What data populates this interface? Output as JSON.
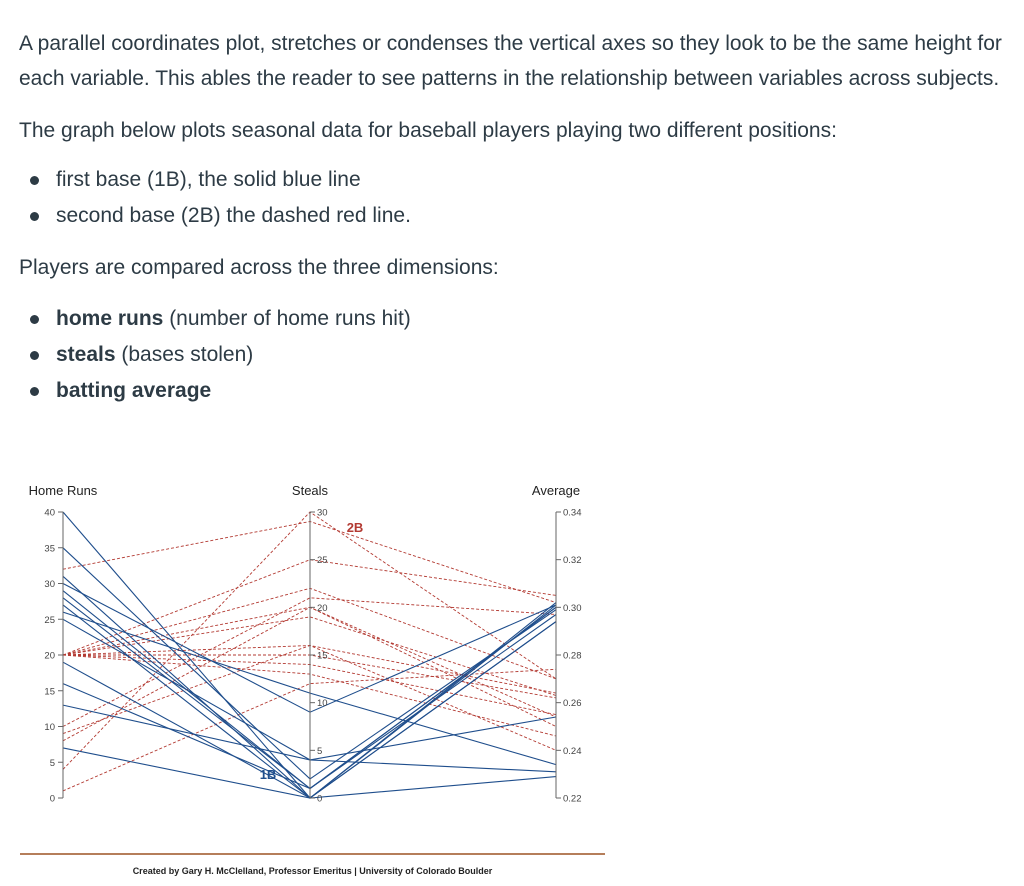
{
  "text": {
    "intro": "A parallel coordinates plot, stretches or condenses the vertical axes so they look to be the same height for each variable. This ables the reader to see patterns in the relationship between variables across subjects.",
    "lead": "The graph below plots seasonal data for baseball players playing two different positions:",
    "positions": [
      "first base (1B), the solid blue line",
      "second base (2B) the dashed red line."
    ],
    "dims_lead": "Players are compared across the three dimensions:",
    "dims": [
      {
        "name": "home runs",
        "desc": " (number of home runs hit)"
      },
      {
        "name": "steals",
        "desc": " (bases stolen)"
      },
      {
        "name": "batting average",
        "desc": ""
      }
    ]
  },
  "chart_data": {
    "type": "parallel_coordinates",
    "title": "",
    "axes": [
      {
        "name": "Home Runs",
        "range": [
          0,
          40
        ],
        "ticks": [
          "0",
          "5",
          "10",
          "15",
          "20",
          "25",
          "30",
          "35",
          "40"
        ]
      },
      {
        "name": "Steals",
        "range": [
          0,
          30
        ],
        "ticks": [
          "0",
          "5",
          "10",
          "15",
          "20",
          "25",
          "30"
        ]
      },
      {
        "name": "Average",
        "range": [
          0.22,
          0.34
        ],
        "ticks": [
          "0.22",
          "0.24",
          "0.26",
          "0.28",
          "0.30",
          "0.32",
          "0.34"
        ]
      }
    ],
    "annotations": [
      "2B",
      "1B"
    ],
    "colors": {
      "1B": "#1f4e8c",
      "2B": "#b33a32"
    },
    "series": [
      {
        "name": "1B",
        "style": "solid",
        "players": [
          [
            40,
            0,
            0.229
          ],
          [
            35,
            2,
            0.299
          ],
          [
            31,
            0,
            0.302
          ],
          [
            30,
            9,
            0.301
          ],
          [
            29,
            1,
            0.3
          ],
          [
            28,
            1,
            0.297
          ],
          [
            27,
            0,
            0.294
          ],
          [
            26,
            11,
            0.234
          ],
          [
            25,
            4,
            0.254
          ],
          [
            19,
            0,
            0.294
          ],
          [
            16,
            1,
            0.3
          ],
          [
            13,
            4,
            0.231
          ],
          [
            7,
            0,
            0.301
          ]
        ]
      },
      {
        "name": "2B",
        "style": "dashed",
        "players": [
          [
            32,
            29,
            0.302
          ],
          [
            20,
            25,
            0.305
          ],
          [
            20,
            22,
            0.27
          ],
          [
            20,
            20,
            0.254
          ],
          [
            20,
            19,
            0.263
          ],
          [
            20,
            16,
            0.264
          ],
          [
            20,
            15,
            0.262
          ],
          [
            20,
            14,
            0.255
          ],
          [
            20,
            13,
            0.246
          ],
          [
            10,
            21,
            0.297
          ],
          [
            9,
            16,
            0.24
          ],
          [
            8,
            20,
            0.25
          ],
          [
            4,
            30,
            0.27
          ],
          [
            1,
            12,
            0.274
          ]
        ]
      }
    ]
  },
  "credit": "Created by Gary H. McClelland, Professor Emeritus | University of Colorado Boulder"
}
